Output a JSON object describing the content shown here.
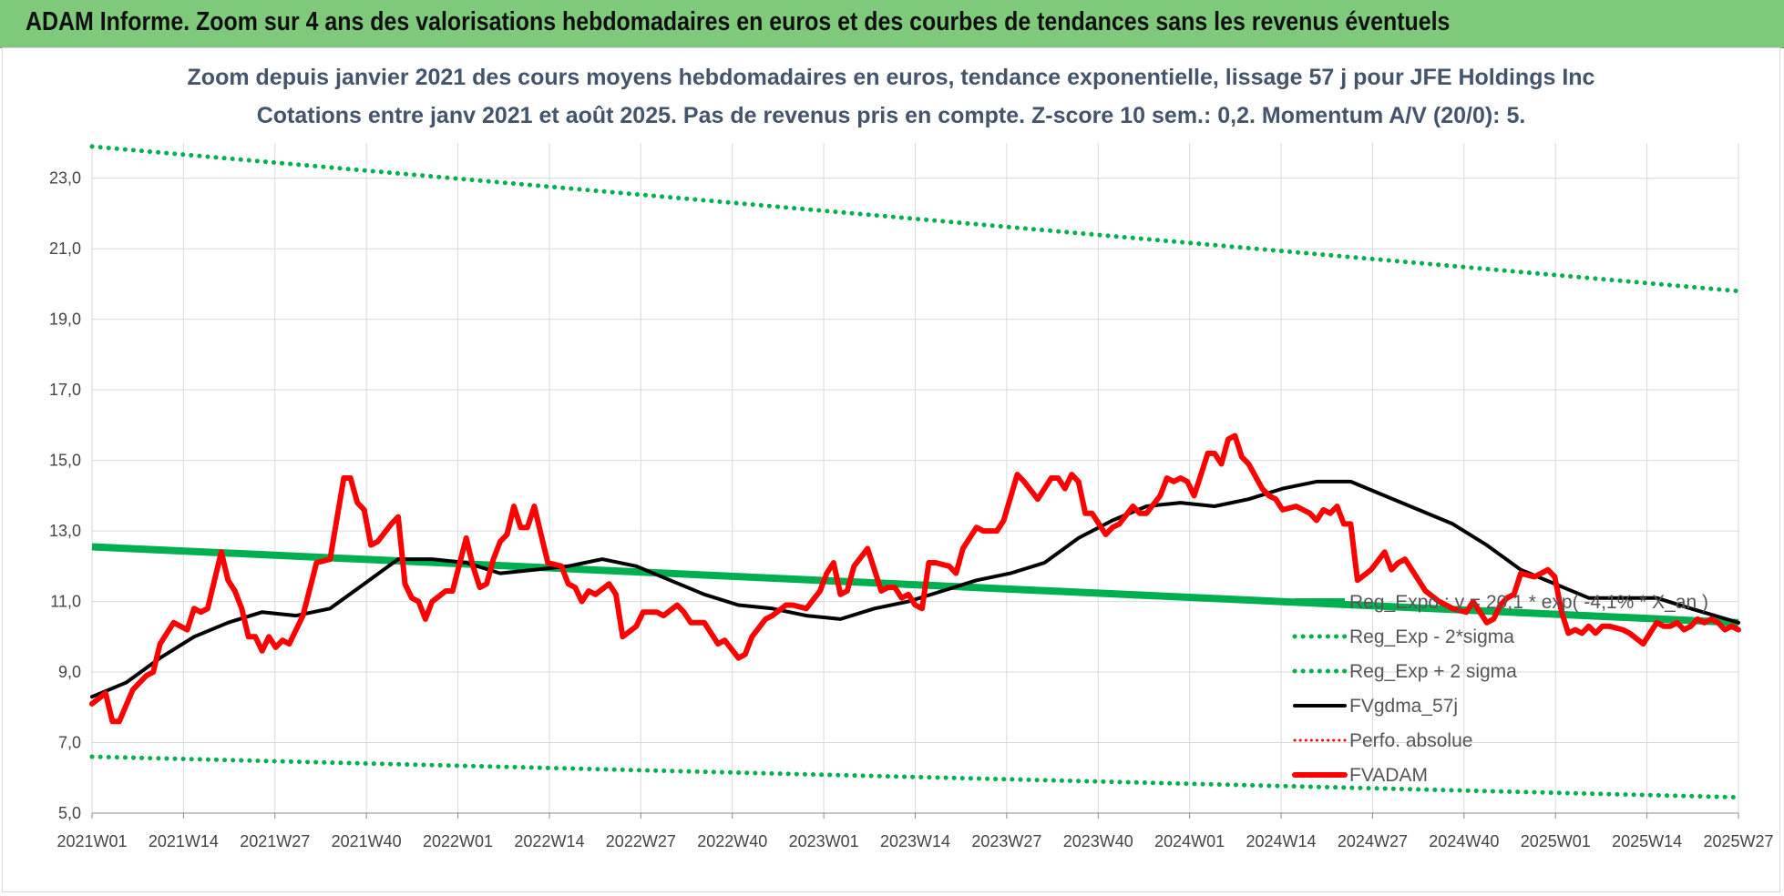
{
  "header": {
    "title": "ADAM Informe. Zoom sur 4 ans des valorisations hebdomadaires en euros et des courbes de tendances sans les revenus éventuels"
  },
  "chart_data": {
    "type": "line",
    "subtitle_lines": [
      "Zoom depuis janvier 2021 des cours moyens hebdomadaires en euros, tendance exponentielle, lissage 57 j pour JFE Holdings Inc",
      "Cotations entre janv 2021 et août 2025.  Pas de revenus pris en compte. Z-score 10 sem.: 0,2. Momentum A/V (20/0): 5."
    ],
    "x_tick_labels": [
      "2021W01",
      "2021W14",
      "2021W27",
      "2021W40",
      "2022W01",
      "2022W14",
      "2022W27",
      "2022W40",
      "2023W01",
      "2023W14",
      "2023W27",
      "2023W40",
      "2024W01",
      "2024W14",
      "2024W27",
      "2024W40",
      "2025W01",
      "2025W14",
      "2025W27"
    ],
    "x_range_weeks": [
      0,
      242
    ],
    "y_ticks": [
      "5,0",
      "7,0",
      "9,0",
      "11,0",
      "13,0",
      "15,0",
      "17,0",
      "19,0",
      "21,0",
      "23,0"
    ],
    "ylim": [
      5,
      24
    ],
    "grid": true,
    "legend_position": "right",
    "colors": {
      "reg_expo": "#00b050",
      "sigma_bands": "#00b050",
      "fvgdma": "#000000",
      "perfo": "#ff0000",
      "fvadam": "#ff0000"
    },
    "series": [
      {
        "name": "Reg_Expo : y = 20,1 * exp( -4,1% * X_an )",
        "style": "solid-thick",
        "points": [
          [
            0,
            12.55
          ],
          [
            242,
            10.4
          ]
        ]
      },
      {
        "name": "Reg_Exp - 2*sigma",
        "style": "dotted",
        "points": [
          [
            0,
            6.6
          ],
          [
            242,
            5.45
          ]
        ]
      },
      {
        "name": "Reg_Exp + 2 sigma",
        "style": "dotted",
        "points": [
          [
            0,
            23.9
          ],
          [
            242,
            19.8
          ]
        ]
      },
      {
        "name": "FVgdma_57j",
        "style": "solid",
        "points": [
          [
            0,
            8.3
          ],
          [
            5,
            8.7
          ],
          [
            10,
            9.4
          ],
          [
            15,
            10.0
          ],
          [
            20,
            10.4
          ],
          [
            25,
            10.7
          ],
          [
            30,
            10.6
          ],
          [
            35,
            10.8
          ],
          [
            40,
            11.5
          ],
          [
            45,
            12.2
          ],
          [
            50,
            12.2
          ],
          [
            55,
            12.1
          ],
          [
            60,
            11.8
          ],
          [
            65,
            11.9
          ],
          [
            70,
            12.0
          ],
          [
            75,
            12.2
          ],
          [
            80,
            12.0
          ],
          [
            85,
            11.6
          ],
          [
            90,
            11.2
          ],
          [
            95,
            10.9
          ],
          [
            100,
            10.8
          ],
          [
            105,
            10.6
          ],
          [
            110,
            10.5
          ],
          [
            115,
            10.8
          ],
          [
            120,
            11.0
          ],
          [
            125,
            11.3
          ],
          [
            130,
            11.6
          ],
          [
            135,
            11.8
          ],
          [
            140,
            12.1
          ],
          [
            145,
            12.8
          ],
          [
            150,
            13.3
          ],
          [
            155,
            13.7
          ],
          [
            160,
            13.8
          ],
          [
            165,
            13.7
          ],
          [
            170,
            13.9
          ],
          [
            175,
            14.2
          ],
          [
            180,
            14.4
          ],
          [
            185,
            14.4
          ],
          [
            190,
            14.0
          ],
          [
            195,
            13.6
          ],
          [
            200,
            13.2
          ],
          [
            205,
            12.6
          ],
          [
            210,
            11.9
          ],
          [
            215,
            11.5
          ],
          [
            220,
            11.1
          ],
          [
            225,
            11.1
          ],
          [
            230,
            11.1
          ],
          [
            235,
            10.8
          ],
          [
            242,
            10.4
          ]
        ]
      },
      {
        "name": "Perfo. absolue",
        "style": "dotted-red",
        "points": []
      },
      {
        "name": "FVADAM",
        "style": "solid-thick",
        "points": [
          [
            0,
            8.1
          ],
          [
            2,
            8.4
          ],
          [
            3,
            7.6
          ],
          [
            4,
            7.6
          ],
          [
            6,
            8.5
          ],
          [
            8,
            8.9
          ],
          [
            9,
            9.0
          ],
          [
            10,
            9.8
          ],
          [
            12,
            10.4
          ],
          [
            14,
            10.2
          ],
          [
            15,
            10.8
          ],
          [
            16,
            10.7
          ],
          [
            17,
            10.8
          ],
          [
            19,
            12.4
          ],
          [
            20,
            11.6
          ],
          [
            21,
            11.3
          ],
          [
            22,
            10.8
          ],
          [
            23,
            10.0
          ],
          [
            24,
            10.0
          ],
          [
            25,
            9.6
          ],
          [
            26,
            10.0
          ],
          [
            27,
            9.7
          ],
          [
            28,
            9.9
          ],
          [
            29,
            9.8
          ],
          [
            31,
            10.6
          ],
          [
            33,
            12.1
          ],
          [
            35,
            12.2
          ],
          [
            37,
            14.5
          ],
          [
            38,
            14.5
          ],
          [
            39,
            13.8
          ],
          [
            40,
            13.6
          ],
          [
            41,
            12.6
          ],
          [
            42,
            12.7
          ],
          [
            44,
            13.2
          ],
          [
            45,
            13.4
          ],
          [
            46,
            11.5
          ],
          [
            47,
            11.1
          ],
          [
            48,
            11.0
          ],
          [
            49,
            10.5
          ],
          [
            50,
            11.0
          ],
          [
            52,
            11.3
          ],
          [
            53,
            11.3
          ],
          [
            55,
            12.8
          ],
          [
            56,
            12.0
          ],
          [
            57,
            11.4
          ],
          [
            58,
            11.5
          ],
          [
            59,
            12.2
          ],
          [
            60,
            12.7
          ],
          [
            61,
            12.9
          ],
          [
            62,
            13.7
          ],
          [
            63,
            13.1
          ],
          [
            64,
            13.1
          ],
          [
            65,
            13.7
          ],
          [
            66,
            12.9
          ],
          [
            67,
            12.1
          ],
          [
            69,
            12.0
          ],
          [
            70,
            11.5
          ],
          [
            71,
            11.4
          ],
          [
            72,
            11.0
          ],
          [
            73,
            11.3
          ],
          [
            74,
            11.2
          ],
          [
            76,
            11.5
          ],
          [
            77,
            11.2
          ],
          [
            78,
            10.0
          ],
          [
            80,
            10.3
          ],
          [
            81,
            10.7
          ],
          [
            83,
            10.7
          ],
          [
            84,
            10.6
          ],
          [
            86,
            10.9
          ],
          [
            87,
            10.7
          ],
          [
            88,
            10.4
          ],
          [
            90,
            10.4
          ],
          [
            92,
            9.8
          ],
          [
            93,
            9.9
          ],
          [
            95,
            9.4
          ],
          [
            96,
            9.5
          ],
          [
            97,
            10.0
          ],
          [
            99,
            10.5
          ],
          [
            100,
            10.6
          ],
          [
            102,
            10.9
          ],
          [
            103,
            10.9
          ],
          [
            105,
            10.8
          ],
          [
            107,
            11.3
          ],
          [
            108,
            11.8
          ],
          [
            109,
            12.1
          ],
          [
            110,
            11.2
          ],
          [
            111,
            11.3
          ],
          [
            112,
            12.0
          ],
          [
            114,
            12.5
          ],
          [
            115,
            11.9
          ],
          [
            116,
            11.3
          ],
          [
            117,
            11.4
          ],
          [
            118,
            11.4
          ],
          [
            119,
            11.1
          ],
          [
            120,
            11.2
          ],
          [
            121,
            10.9
          ],
          [
            122,
            10.8
          ],
          [
            123,
            12.1
          ],
          [
            124,
            12.1
          ],
          [
            126,
            12.0
          ],
          [
            127,
            11.8
          ],
          [
            128,
            12.5
          ],
          [
            130,
            13.1
          ],
          [
            131,
            13.0
          ],
          [
            133,
            13.0
          ],
          [
            134,
            13.3
          ],
          [
            136,
            14.6
          ],
          [
            137,
            14.4
          ],
          [
            139,
            13.9
          ],
          [
            141,
            14.5
          ],
          [
            142,
            14.5
          ],
          [
            143,
            14.2
          ],
          [
            144,
            14.6
          ],
          [
            145,
            14.4
          ],
          [
            146,
            13.5
          ],
          [
            147,
            13.5
          ],
          [
            148,
            13.2
          ],
          [
            149,
            12.9
          ],
          [
            150,
            13.1
          ],
          [
            151,
            13.2
          ],
          [
            153,
            13.7
          ],
          [
            154,
            13.5
          ],
          [
            155,
            13.5
          ],
          [
            157,
            14.0
          ],
          [
            158,
            14.5
          ],
          [
            159,
            14.4
          ],
          [
            160,
            14.5
          ],
          [
            161,
            14.4
          ],
          [
            162,
            14.0
          ],
          [
            164,
            15.2
          ],
          [
            165,
            15.2
          ],
          [
            166,
            14.9
          ],
          [
            167,
            15.6
          ],
          [
            168,
            15.7
          ],
          [
            169,
            15.1
          ],
          [
            170,
            14.9
          ],
          [
            172,
            14.2
          ],
          [
            173,
            14.0
          ],
          [
            174,
            13.9
          ],
          [
            175,
            13.6
          ],
          [
            177,
            13.7
          ],
          [
            179,
            13.5
          ],
          [
            180,
            13.3
          ],
          [
            181,
            13.6
          ],
          [
            182,
            13.5
          ],
          [
            183,
            13.7
          ],
          [
            184,
            13.2
          ],
          [
            185,
            13.2
          ],
          [
            186,
            11.6
          ],
          [
            188,
            11.9
          ],
          [
            190,
            12.4
          ],
          [
            191,
            11.9
          ],
          [
            192,
            12.1
          ],
          [
            193,
            12.2
          ],
          [
            194,
            11.9
          ],
          [
            196,
            11.3
          ],
          [
            198,
            11.0
          ],
          [
            200,
            10.8
          ],
          [
            202,
            10.7
          ],
          [
            203,
            11.0
          ],
          [
            205,
            10.4
          ],
          [
            206,
            10.5
          ],
          [
            207,
            10.9
          ],
          [
            208,
            11.1
          ],
          [
            209,
            11.2
          ],
          [
            210,
            11.8
          ],
          [
            212,
            11.7
          ],
          [
            213,
            11.8
          ],
          [
            214,
            11.9
          ],
          [
            215,
            11.7
          ],
          [
            216,
            10.7
          ],
          [
            217,
            10.1
          ],
          [
            218,
            10.2
          ],
          [
            219,
            10.1
          ],
          [
            220,
            10.3
          ],
          [
            221,
            10.1
          ],
          [
            222,
            10.3
          ],
          [
            223,
            10.3
          ],
          [
            225,
            10.2
          ],
          [
            226,
            10.1
          ],
          [
            228,
            9.8
          ],
          [
            229,
            10.1
          ],
          [
            230,
            10.4
          ],
          [
            231,
            10.3
          ],
          [
            232,
            10.3
          ],
          [
            233,
            10.4
          ],
          [
            234,
            10.2
          ],
          [
            235,
            10.3
          ],
          [
            236,
            10.5
          ],
          [
            237,
            10.4
          ],
          [
            238,
            10.5
          ],
          [
            239,
            10.4
          ],
          [
            240,
            10.2
          ],
          [
            241,
            10.3
          ],
          [
            242,
            10.2
          ]
        ]
      }
    ]
  }
}
